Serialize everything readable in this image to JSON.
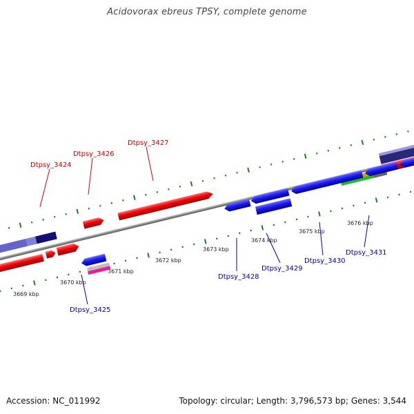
{
  "title": "Acidovorax ebreus TPSY, complete genome",
  "footer": {
    "accession": "Accession: NC_011992",
    "topology": "Topology: circular; Length: 3,796,573 bp; Genes: 3,544"
  },
  "colors": {
    "forward_gene": "#ee0000",
    "reverse_gene": "#1a1aee",
    "label_forward": "#cc0000",
    "label_reverse": "#0000aa",
    "tick": "#1a7f1a",
    "backbone": "#888888"
  },
  "scale_labels": [
    "3669 kbp",
    "3670 kbp",
    "3671 kbp",
    "3672 kbp",
    "3673 kbp",
    "3674 kbp",
    "3675 kbp",
    "3676 kbp"
  ],
  "genes_forward": [
    "Dtpsy_3424",
    "Dtpsy_3426",
    "Dtpsy_3427"
  ],
  "genes_reverse": [
    "Dtpsy_3425",
    "Dtpsy_3428",
    "Dtpsy_3429",
    "Dtpsy_3430",
    "Dtpsy_3431"
  ]
}
